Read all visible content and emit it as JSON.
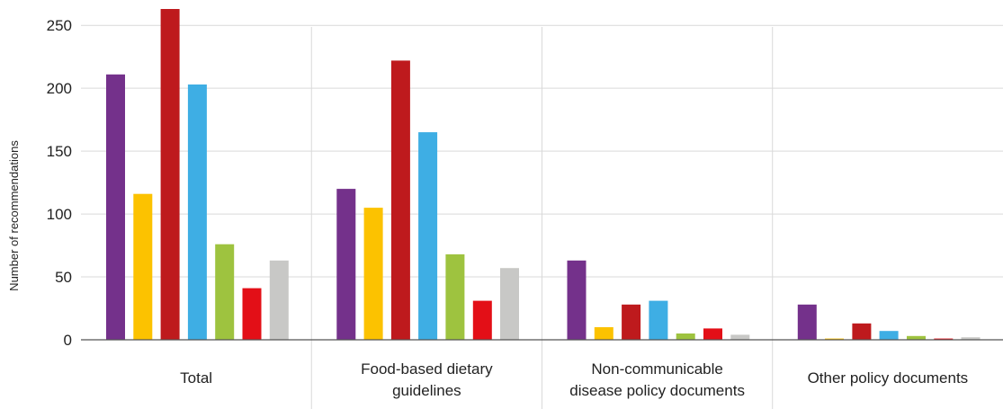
{
  "chart_data": {
    "type": "bar",
    "ylabel": "Number of recommendations",
    "ylim": [
      0,
      263
    ],
    "yticks": [
      0,
      50,
      100,
      150,
      200,
      250
    ],
    "grid": true,
    "categories": [
      [
        "Total"
      ],
      [
        "Food-based dietary",
        "guidelines"
      ],
      [
        "Non-communicable",
        "disease policy documents"
      ],
      [
        "Other policy documents"
      ]
    ],
    "series": [
      {
        "color": "#74318b",
        "values": [
          211,
          120,
          63,
          28
        ]
      },
      {
        "color": "#fcc200",
        "values": [
          116,
          105,
          10,
          1
        ]
      },
      {
        "color": "#be1a1d",
        "values": [
          263,
          222,
          28,
          13
        ]
      },
      {
        "color": "#3eaee4",
        "values": [
          203,
          165,
          31,
          7
        ]
      },
      {
        "color": "#9ec33f",
        "values": [
          76,
          68,
          5,
          3
        ]
      },
      {
        "color": "#e30f17",
        "values": [
          41,
          31,
          9,
          1
        ]
      },
      {
        "color": "#c8c8c6",
        "values": [
          63,
          57,
          4,
          2
        ]
      }
    ]
  }
}
